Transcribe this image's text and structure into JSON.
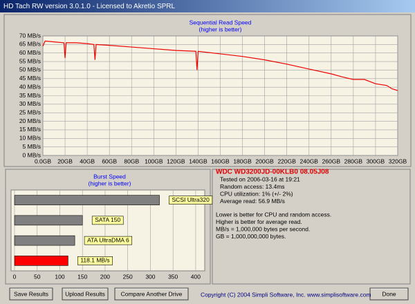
{
  "window": {
    "title": "HD Tach RW version 3.0.1.0 - Licensed to Akretio SPRL"
  },
  "chart_data": [
    {
      "type": "line",
      "title": "Sequential Read Speed",
      "subtitle": "(higher is better)",
      "color": "#ee0000",
      "grid": true,
      "x": [
        0,
        2,
        10,
        19,
        20,
        21,
        30,
        40,
        46,
        47,
        48,
        60,
        80,
        100,
        120,
        138,
        139,
        140,
        160,
        180,
        200,
        220,
        240,
        260,
        270,
        280,
        290,
        300,
        310,
        315,
        320
      ],
      "values": [
        64,
        67,
        66.5,
        66,
        57,
        66,
        66,
        65.5,
        65,
        56,
        65,
        64.5,
        63.5,
        62.5,
        61.5,
        61,
        50,
        61,
        59.5,
        58,
        56,
        53.5,
        50.6,
        47.8,
        46,
        44.5,
        44.5,
        42,
        41,
        39,
        38
      ],
      "xlim": [
        0,
        320
      ],
      "ylim": [
        0,
        70
      ],
      "xticks": [
        {
          "value": 0,
          "label": "0.0GB"
        },
        {
          "value": 20,
          "label": "20GB"
        },
        {
          "value": 40,
          "label": "40GB"
        },
        {
          "value": 60,
          "label": "60GB"
        },
        {
          "value": 80,
          "label": "80GB"
        },
        {
          "value": 100,
          "label": "100GB"
        },
        {
          "value": 120,
          "label": "120GB"
        },
        {
          "value": 140,
          "label": "140GB"
        },
        {
          "value": 160,
          "label": "160GB"
        },
        {
          "value": 180,
          "label": "180GB"
        },
        {
          "value": 200,
          "label": "200GB"
        },
        {
          "value": 220,
          "label": "220GB"
        },
        {
          "value": 240,
          "label": "240GB"
        },
        {
          "value": 260,
          "label": "260GB"
        },
        {
          "value": 280,
          "label": "280GB"
        },
        {
          "value": 300,
          "label": "300GB"
        },
        {
          "value": 320,
          "label": "320GB"
        }
      ],
      "yticks": [
        {
          "value": 0,
          "label": "0 MB/s"
        },
        {
          "value": 5,
          "label": "5 MB/s"
        },
        {
          "value": 10,
          "label": "10 MB/s"
        },
        {
          "value": 15,
          "label": "15 MB/s"
        },
        {
          "value": 20,
          "label": "20 MB/s"
        },
        {
          "value": 25,
          "label": "25 MB/s"
        },
        {
          "value": 30,
          "label": "30 MB/s"
        },
        {
          "value": 35,
          "label": "35 MB/s"
        },
        {
          "value": 40,
          "label": "40 MB/s"
        },
        {
          "value": 45,
          "label": "45 MB/s"
        },
        {
          "value": 50,
          "label": "50 MB/s"
        },
        {
          "value": 55,
          "label": "55 MB/s"
        },
        {
          "value": 60,
          "label": "60 MB/s"
        },
        {
          "value": 65,
          "label": "65 MB/s"
        },
        {
          "value": 70,
          "label": "70 MB/s"
        }
      ]
    },
    {
      "type": "hbar",
      "title": "Burst Speed",
      "subtitle": "(higher is better)",
      "grid": true,
      "categories": [
        "SCSI Ultra320",
        "SATA 150",
        "ATA UltraDMA 6",
        null
      ],
      "values": [
        320,
        150,
        133,
        118.1
      ],
      "value_labels": [
        null,
        null,
        null,
        "118.1 MB/s"
      ],
      "colors": [
        "#808080",
        "#808080",
        "#808080",
        "#ff0000"
      ],
      "xlim": [
        0,
        420
      ],
      "xticks": [
        0,
        50,
        100,
        150,
        200,
        250,
        300,
        350,
        400
      ]
    }
  ],
  "info": {
    "drive": "WDC WD3200JD-00KLB0 08.05J08",
    "details": [
      "Tested on 2006-03-16 at 19:21",
      "Random access: 13.4ms",
      "CPU utilization: 1% (+/- 2%)",
      "Average read: 56.9 MB/s"
    ],
    "notes": [
      "Lower is better for CPU and random access.",
      "Higher is better for average read.",
      "MB/s = 1,000,000 bytes per second.",
      "GB = 1,000,000,000 bytes."
    ]
  },
  "buttons": [
    "Save Results",
    "Upload Results",
    "Compare Another Drive",
    "Done"
  ],
  "footer": "Copyright (C) 2004 Simpli Software, Inc. www.simplisoftware.com"
}
